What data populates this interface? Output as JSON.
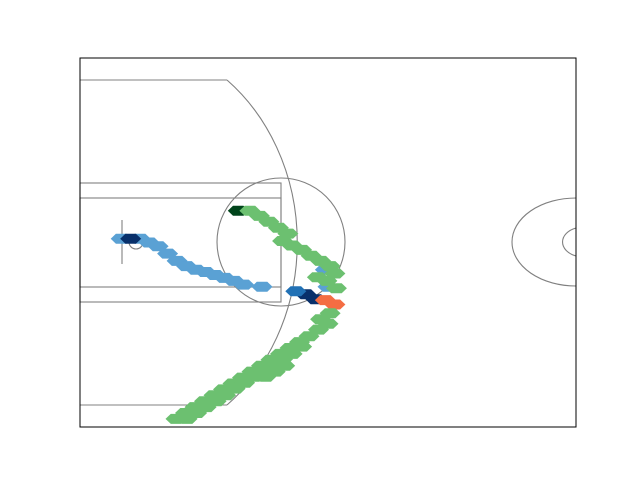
{
  "chart_data": {
    "type": "heatmap",
    "subtype": "hexbin",
    "title": "",
    "xlabel": "",
    "ylabel": "",
    "xlim": [
      0,
      94
    ],
    "ylim": [
      0,
      50
    ],
    "grid": false,
    "axes_ticks": false,
    "background": "court",
    "colors": {
      "court_line": "#808080",
      "frame": "#000000",
      "navy": "#08306b",
      "blue": "#2171b5",
      "light_blue": "#5aa1d4",
      "dark_green": "#00441b",
      "green": "#6cc070",
      "orange": "#f46d43"
    },
    "series": [
      {
        "color": "light_blue",
        "points": [
          [
            7.8,
            25.5
          ],
          [
            11.4,
            25.5
          ],
          [
            13.1,
            25.0
          ],
          [
            14.8,
            24.5
          ],
          [
            16.6,
            23.5
          ],
          [
            18.4,
            22.5
          ],
          [
            20.2,
            21.8
          ],
          [
            22.0,
            21.3
          ],
          [
            23.8,
            21.0
          ],
          [
            25.6,
            20.6
          ],
          [
            27.4,
            20.2
          ],
          [
            29.2,
            19.8
          ],
          [
            31.0,
            19.3
          ],
          [
            34.5,
            19.0
          ],
          [
            46.5,
            21.3
          ],
          [
            47.0,
            19.0
          ]
        ]
      },
      {
        "color": "navy",
        "points": [
          [
            9.6,
            25.5
          ],
          [
            42.8,
            18.0
          ],
          [
            44.7,
            17.3
          ]
        ]
      },
      {
        "color": "blue",
        "points": [
          [
            40.9,
            18.4
          ]
        ]
      },
      {
        "color": "dark_green",
        "points": [
          [
            30.0,
            29.3
          ]
        ]
      },
      {
        "color": "orange",
        "points": [
          [
            46.5,
            17.2
          ],
          [
            48.3,
            16.6
          ]
        ]
      },
      {
        "color": "green",
        "points": [
          [
            32.2,
            29.3
          ],
          [
            34.0,
            28.6
          ],
          [
            35.8,
            27.8
          ],
          [
            37.6,
            27.0
          ],
          [
            39.4,
            26.2
          ],
          [
            38.4,
            25.2
          ],
          [
            40.2,
            24.6
          ],
          [
            42.0,
            24.0
          ],
          [
            43.8,
            23.2
          ],
          [
            45.6,
            22.5
          ],
          [
            47.4,
            21.8
          ],
          [
            48.3,
            20.8
          ],
          [
            45.0,
            20.3
          ],
          [
            46.8,
            19.8
          ],
          [
            48.6,
            18.8
          ],
          [
            47.4,
            15.4
          ],
          [
            45.6,
            14.6
          ],
          [
            47.0,
            14.0
          ],
          [
            45.2,
            13.2
          ],
          [
            43.4,
            12.3
          ],
          [
            41.6,
            11.5
          ],
          [
            39.8,
            10.7
          ],
          [
            42.0,
            10.9
          ],
          [
            38.0,
            9.9
          ],
          [
            40.2,
            9.9
          ],
          [
            36.2,
            9.1
          ],
          [
            38.4,
            9.2
          ],
          [
            34.4,
            8.3
          ],
          [
            36.6,
            8.4
          ],
          [
            38.8,
            8.3
          ],
          [
            32.6,
            7.5
          ],
          [
            34.8,
            7.6
          ],
          [
            37.0,
            7.5
          ],
          [
            30.8,
            6.7
          ],
          [
            33.0,
            6.8
          ],
          [
            35.2,
            6.8
          ],
          [
            29.0,
            5.9
          ],
          [
            31.2,
            6.0
          ],
          [
            27.2,
            5.1
          ],
          [
            29.4,
            5.2
          ],
          [
            25.4,
            4.3
          ],
          [
            27.6,
            4.3
          ],
          [
            23.6,
            3.5
          ],
          [
            25.8,
            3.5
          ],
          [
            21.8,
            2.7
          ],
          [
            23.9,
            2.7
          ],
          [
            20.0,
            1.9
          ],
          [
            22.1,
            1.9
          ],
          [
            18.2,
            1.1
          ],
          [
            20.3,
            1.1
          ]
        ]
      }
    ]
  }
}
